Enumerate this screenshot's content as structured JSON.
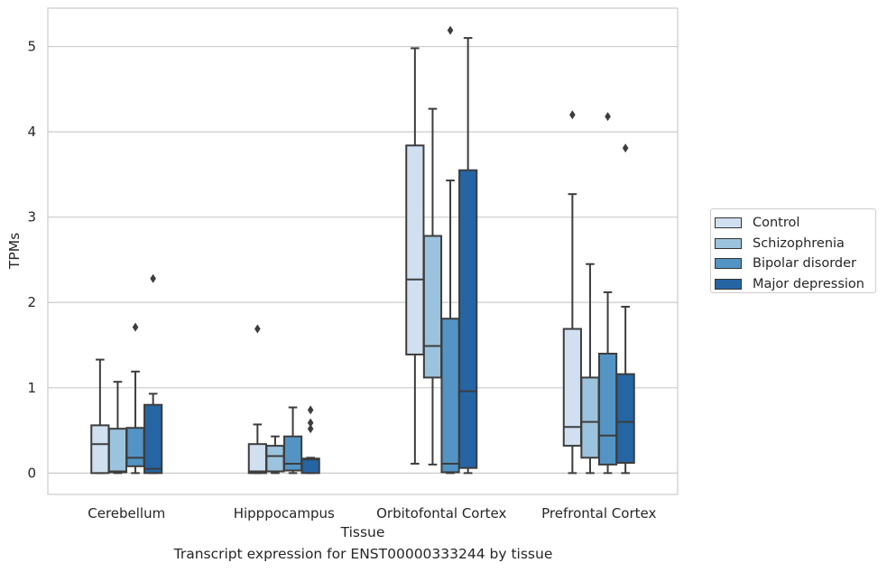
{
  "chart_data": {
    "type": "box",
    "xlabel": "Tissue",
    "ylabel": "TPMs",
    "caption": "Transcript expression for ENST00000333244 by tissue",
    "ylim": [
      -0.25,
      5.45
    ],
    "yticks": [
      0,
      1,
      2,
      3,
      4,
      5
    ],
    "grid": "horizontal",
    "legend_position": "right",
    "categories": [
      "Cerebellum",
      "Hipppocampus",
      "Orbitofontal Cortex",
      "Prefrontal Cortex"
    ],
    "series": [
      {
        "name": "Control",
        "color": "#d0e0f0",
        "boxes": [
          {
            "whisker_low": 0,
            "q1": 0,
            "median": 0.34,
            "q3": 0.56,
            "whisker_high": 1.33,
            "outliers": []
          },
          {
            "whisker_low": 0,
            "q1": 0,
            "median": 0.02,
            "q3": 0.34,
            "whisker_high": 0.57,
            "outliers": [
              1.69
            ]
          },
          {
            "whisker_low": 0.11,
            "q1": 1.39,
            "median": 2.27,
            "q3": 3.84,
            "whisker_high": 4.98,
            "outliers": []
          },
          {
            "whisker_low": 0,
            "q1": 0.32,
            "median": 0.54,
            "q3": 1.69,
            "whisker_high": 3.27,
            "outliers": [
              4.2
            ]
          }
        ]
      },
      {
        "name": "Schizophrenia",
        "color": "#9cc3dd",
        "boxes": [
          {
            "whisker_low": 0,
            "q1": 0.01,
            "median": 0.02,
            "q3": 0.52,
            "whisker_high": 1.07,
            "outliers": []
          },
          {
            "whisker_low": 0,
            "q1": 0.02,
            "median": 0.2,
            "q3": 0.32,
            "whisker_high": 0.43,
            "outliers": []
          },
          {
            "whisker_low": 0.1,
            "q1": 1.12,
            "median": 1.49,
            "q3": 2.78,
            "whisker_high": 4.27,
            "outliers": []
          },
          {
            "whisker_low": 0,
            "q1": 0.18,
            "median": 0.6,
            "q3": 1.12,
            "whisker_high": 2.45,
            "outliers": []
          }
        ]
      },
      {
        "name": "Bipolar disorder",
        "color": "#5394c4",
        "boxes": [
          {
            "whisker_low": 0,
            "q1": 0.08,
            "median": 0.18,
            "q3": 0.53,
            "whisker_high": 1.19,
            "outliers": [
              1.71
            ]
          },
          {
            "whisker_low": 0,
            "q1": 0.03,
            "median": 0.11,
            "q3": 0.43,
            "whisker_high": 0.77,
            "outliers": []
          },
          {
            "whisker_low": 0,
            "q1": 0.01,
            "median": 0.11,
            "q3": 1.81,
            "whisker_high": 3.43,
            "outliers": [
              5.19
            ]
          },
          {
            "whisker_low": 0,
            "q1": 0.1,
            "median": 0.44,
            "q3": 1.4,
            "whisker_high": 2.12,
            "outliers": [
              4.18
            ]
          }
        ]
      },
      {
        "name": "Major depression",
        "color": "#2565a4",
        "boxes": [
          {
            "whisker_low": 0,
            "q1": 0,
            "median": 0.05,
            "q3": 0.8,
            "whisker_high": 0.93,
            "outliers": [
              2.28
            ]
          },
          {
            "whisker_low": 0,
            "q1": 0,
            "median": 0.16,
            "q3": 0.17,
            "whisker_high": 0.18,
            "outliers": [
              0.52,
              0.59,
              0.74
            ]
          },
          {
            "whisker_low": 0,
            "q1": 0.06,
            "median": 0.96,
            "q3": 3.55,
            "whisker_high": 5.1,
            "outliers": []
          },
          {
            "whisker_low": 0,
            "q1": 0.12,
            "median": 0.6,
            "q3": 1.16,
            "whisker_high": 1.95,
            "outliers": [
              3.81
            ]
          }
        ]
      }
    ]
  }
}
